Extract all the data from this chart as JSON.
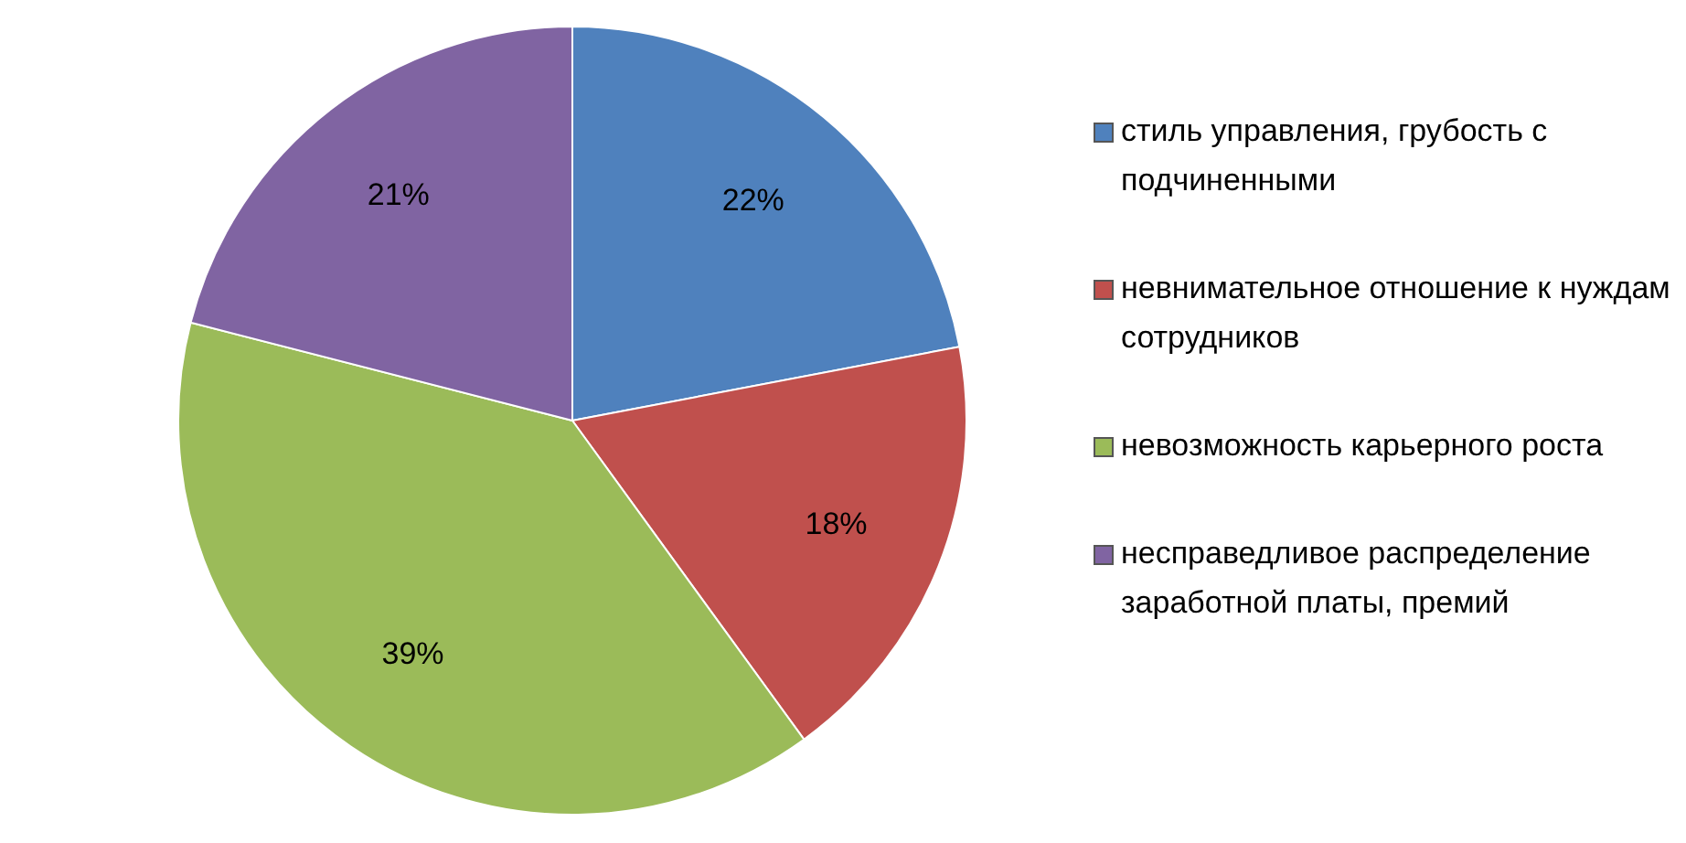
{
  "chart_data": {
    "type": "pie",
    "categories": [
      "стиль управления, грубость с подчиненными",
      "невнимательное отношение к нуждам сотрудников",
      "невозможность карьерного роста",
      "несправедливое распределение заработной платы, премий"
    ],
    "values": [
      22,
      18,
      39,
      21
    ],
    "value_labels": [
      "22%",
      "18%",
      "39%",
      "21%"
    ],
    "colors": [
      "#4f81bd",
      "#c0504d",
      "#9bbb59",
      "#8064a2"
    ],
    "legend": "right"
  }
}
